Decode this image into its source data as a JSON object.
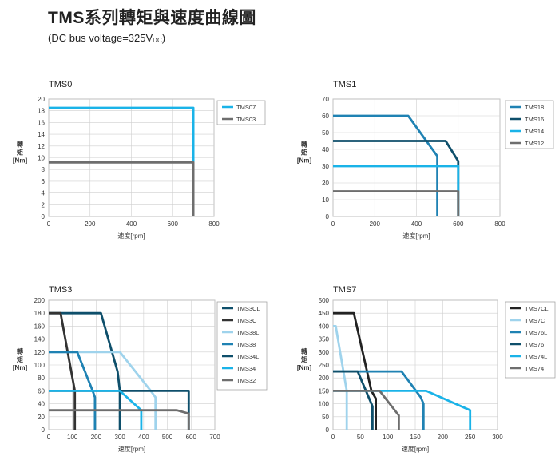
{
  "page": {
    "title": "TMS系列轉矩與速度曲線圖",
    "subtitle_main": "(DC bus voltage=325V",
    "subtitle_sub": "DC",
    "subtitle_end": ")"
  },
  "chart_data": [
    {
      "type": "line",
      "title": "TMS0",
      "xlabel": "速度[rpm]",
      "ylabel": [
        "轉",
        "矩",
        "[Nm]"
      ],
      "xlim": [
        0,
        800
      ],
      "ylim": [
        0,
        20
      ],
      "xticks": [
        0,
        200,
        400,
        600,
        800
      ],
      "yticks": [
        0,
        2,
        4,
        6,
        8,
        10,
        12,
        14,
        16,
        18,
        20
      ],
      "grid": true,
      "legend": "right",
      "series": [
        {
          "name": "TMS07",
          "color": "#1ab3e8",
          "x": [
            0,
            700,
            700
          ],
          "y": [
            18.5,
            18.5,
            0
          ]
        },
        {
          "name": "TMS03",
          "color": "#6e6e6e",
          "x": [
            0,
            700,
            700
          ],
          "y": [
            9.2,
            9.2,
            0
          ]
        }
      ]
    },
    {
      "type": "line",
      "title": "TMS1",
      "xlabel": "速度[rpm]",
      "ylabel": [
        "轉",
        "矩",
        "[Nm]"
      ],
      "xlim": [
        0,
        800
      ],
      "ylim": [
        0,
        70
      ],
      "xticks": [
        0,
        200,
        400,
        600,
        800
      ],
      "yticks": [
        0,
        10,
        20,
        30,
        40,
        50,
        60,
        70
      ],
      "grid": true,
      "legend": "right",
      "series": [
        {
          "name": "TMS18",
          "color": "#1f82b3",
          "x": [
            0,
            360,
            500,
            500
          ],
          "y": [
            60,
            60,
            36,
            0
          ]
        },
        {
          "name": "TMS16",
          "color": "#0e4f6b",
          "x": [
            0,
            540,
            600,
            600
          ],
          "y": [
            45,
            45,
            33,
            0
          ]
        },
        {
          "name": "TMS14",
          "color": "#1ab3e8",
          "x": [
            0,
            600,
            600
          ],
          "y": [
            30,
            30,
            0
          ]
        },
        {
          "name": "TMS12",
          "color": "#6e6e6e",
          "x": [
            0,
            600,
            600
          ],
          "y": [
            15,
            15,
            0
          ]
        }
      ]
    },
    {
      "type": "line",
      "title": "TMS3",
      "xlabel": "速度[rpm]",
      "ylabel": [
        "轉",
        "矩",
        "[Nm]"
      ],
      "xlim": [
        0,
        700
      ],
      "ylim": [
        0,
        200
      ],
      "xticks": [
        0,
        100,
        200,
        300,
        400,
        500,
        600,
        700
      ],
      "yticks": [
        0,
        20,
        40,
        60,
        80,
        100,
        120,
        140,
        160,
        180,
        200
      ],
      "grid": true,
      "legend": "right",
      "series": [
        {
          "name": "TMS3CL",
          "color": "#0e4f6b",
          "x": [
            0,
            220,
            290,
            300,
            300
          ],
          "y": [
            180,
            180,
            90,
            60,
            0
          ]
        },
        {
          "name": "TMS3C",
          "color": "#333333",
          "x": [
            0,
            50,
            100,
            110,
            110
          ],
          "y": [
            180,
            180,
            80,
            60,
            0
          ]
        },
        {
          "name": "TMS38L",
          "color": "#9fd3ec",
          "x": [
            0,
            300,
            430,
            450,
            450
          ],
          "y": [
            120,
            120,
            60,
            50,
            0
          ]
        },
        {
          "name": "TMS38",
          "color": "#1f82b3",
          "x": [
            0,
            120,
            185,
            195,
            195
          ],
          "y": [
            120,
            120,
            60,
            50,
            0
          ]
        },
        {
          "name": "TMS34L",
          "color": "#0e4f6b",
          "x": [
            0,
            590,
            590
          ],
          "y": [
            60,
            60,
            0
          ]
        },
        {
          "name": "TMS34",
          "color": "#1ab3e8",
          "x": [
            0,
            300,
            390,
            390
          ],
          "y": [
            60,
            60,
            30,
            0
          ]
        },
        {
          "name": "TMS32",
          "color": "#6e6e6e",
          "x": [
            0,
            540,
            590,
            590
          ],
          "y": [
            30,
            30,
            25,
            0
          ]
        }
      ]
    },
    {
      "type": "line",
      "title": "TMS7",
      "xlabel": "速度[rpm]",
      "ylabel": [
        "轉",
        "矩",
        "[Nm]"
      ],
      "xlim": [
        0,
        300
      ],
      "ylim": [
        0,
        500
      ],
      "xticks": [
        0,
        50,
        100,
        150,
        200,
        250,
        300
      ],
      "yticks": [
        0,
        50,
        100,
        150,
        200,
        250,
        300,
        350,
        400,
        450,
        500
      ],
      "grid": true,
      "legend": "right",
      "series": [
        {
          "name": "TMS7CL",
          "color": "#222222",
          "x": [
            0,
            38,
            70,
            78,
            78
          ],
          "y": [
            450,
            450,
            150,
            120,
            0
          ]
        },
        {
          "name": "TMS7C",
          "color": "#9fd3ec",
          "x": [
            0,
            5,
            25,
            25
          ],
          "y": [
            400,
            400,
            150,
            0
          ]
        },
        {
          "name": "TMS76L",
          "color": "#1f82b3",
          "x": [
            0,
            125,
            160,
            165,
            165
          ],
          "y": [
            225,
            225,
            125,
            100,
            0
          ]
        },
        {
          "name": "TMS76",
          "color": "#0e4f6b",
          "x": [
            0,
            45,
            70,
            72,
            72
          ],
          "y": [
            225,
            225,
            100,
            90,
            0
          ]
        },
        {
          "name": "TMS74L",
          "color": "#1ab3e8",
          "x": [
            0,
            170,
            250,
            250
          ],
          "y": [
            150,
            150,
            75,
            0
          ]
        },
        {
          "name": "TMS74",
          "color": "#6e6e6e",
          "x": [
            0,
            85,
            120,
            120
          ],
          "y": [
            150,
            150,
            55,
            0
          ]
        }
      ]
    }
  ]
}
